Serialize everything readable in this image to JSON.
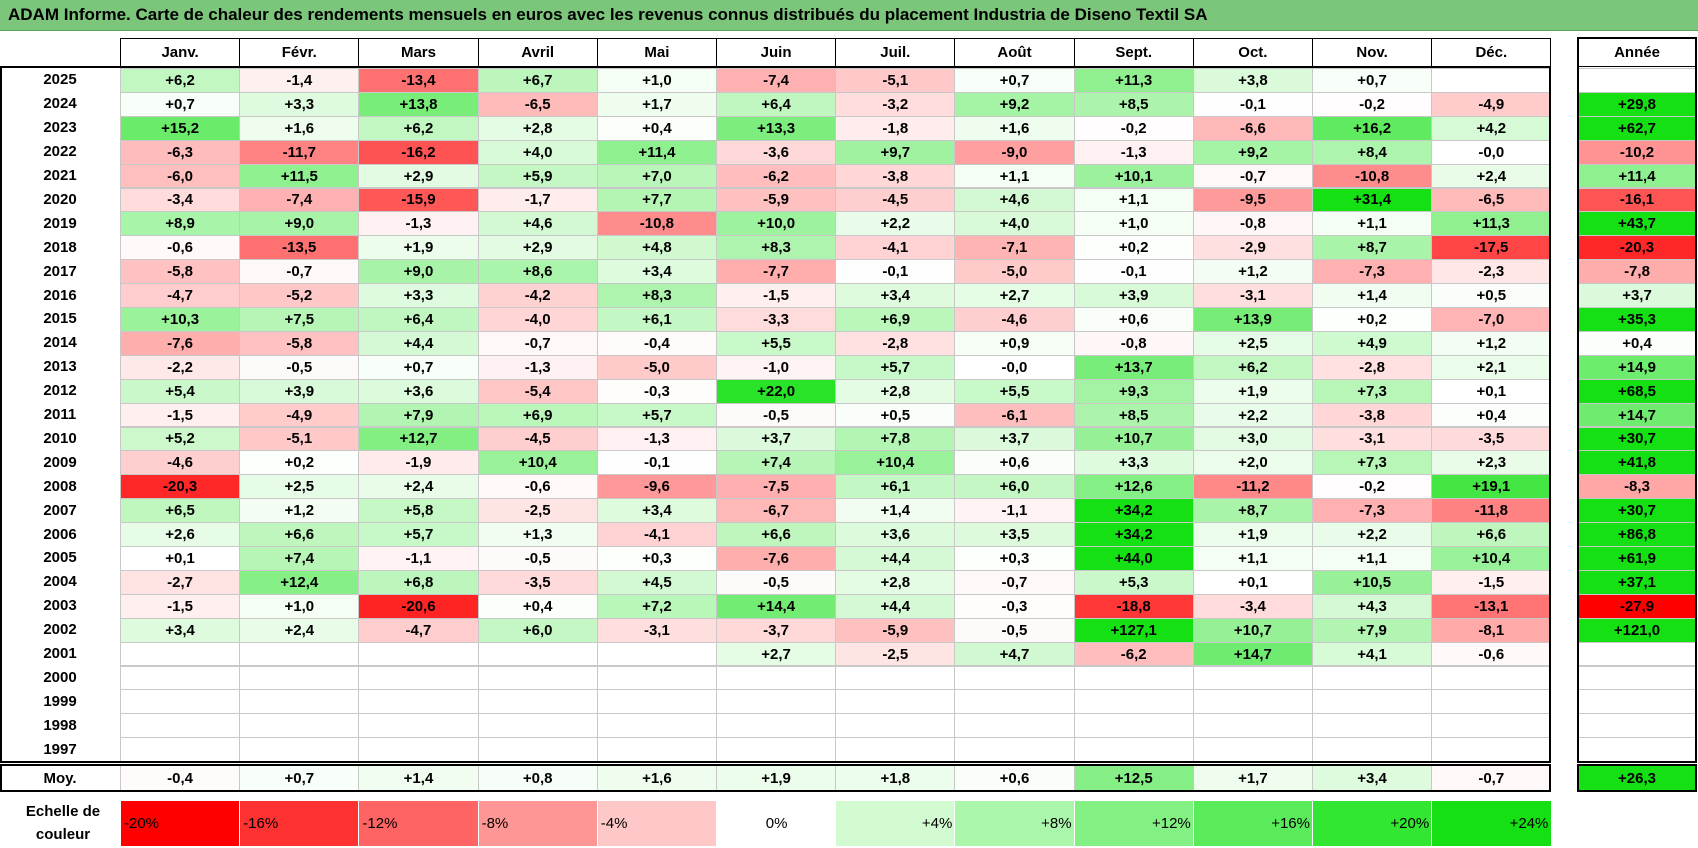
{
  "title": "ADAM Informe. Carte de chaleur des rendements mensuels en euros avec les revenus connus distribués du placement Industria de Diseno Textil SA",
  "chart_data": {
    "type": "heatmap",
    "columns": [
      "Janv.",
      "Févr.",
      "Mars",
      "Avril",
      "Mai",
      "Juin",
      "Juil.",
      "Août",
      "Sept.",
      "Oct.",
      "Nov.",
      "Déc."
    ],
    "year_header": "Année",
    "rows": [
      {
        "year": "2025",
        "months": [
          "+6,2",
          "-1,4",
          "-13,4",
          "+6,7",
          "+1,0",
          "-7,4",
          "-5,1",
          "+0,7",
          "+11,3",
          "+3,8",
          "+0,7",
          ""
        ],
        "annual": ""
      },
      {
        "year": "2024",
        "months": [
          "+0,7",
          "+3,3",
          "+13,8",
          "-6,5",
          "+1,7",
          "+6,4",
          "-3,2",
          "+9,2",
          "+8,5",
          "-0,1",
          "-0,2",
          "-4,9"
        ],
        "annual": "+29,8"
      },
      {
        "year": "2023",
        "months": [
          "+15,2",
          "+1,6",
          "+6,2",
          "+2,8",
          "+0,4",
          "+13,3",
          "-1,8",
          "+1,6",
          "-0,2",
          "-6,6",
          "+16,2",
          "+4,2"
        ],
        "annual": "+62,7"
      },
      {
        "year": "2022",
        "months": [
          "-6,3",
          "-11,7",
          "-16,2",
          "+4,0",
          "+11,4",
          "-3,6",
          "+9,7",
          "-9,0",
          "-1,3",
          "+9,2",
          "+8,4",
          "-0,0"
        ],
        "annual": "-10,2"
      },
      {
        "year": "2021",
        "months": [
          "-6,0",
          "+11,5",
          "+2,9",
          "+5,9",
          "+7,0",
          "-6,2",
          "-3,8",
          "+1,1",
          "+10,1",
          "-0,7",
          "-10,8",
          "+2,4"
        ],
        "annual": "+11,4"
      },
      {
        "year": "2020",
        "months": [
          "-3,4",
          "-7,4",
          "-15,9",
          "-1,7",
          "+7,7",
          "-5,9",
          "-4,5",
          "+4,6",
          "+1,1",
          "-9,5",
          "+31,4",
          "-6,5"
        ],
        "annual": "-16,1"
      },
      {
        "year": "2019",
        "months": [
          "+8,9",
          "+9,0",
          "-1,3",
          "+4,6",
          "-10,8",
          "+10,0",
          "+2,2",
          "+4,0",
          "+1,0",
          "-0,8",
          "+1,1",
          "+11,3"
        ],
        "annual": "+43,7"
      },
      {
        "year": "2018",
        "months": [
          "-0,6",
          "-13,5",
          "+1,9",
          "+2,9",
          "+4,8",
          "+8,3",
          "-4,1",
          "-7,1",
          "+0,2",
          "-2,9",
          "+8,7",
          "-17,5"
        ],
        "annual": "-20,3"
      },
      {
        "year": "2017",
        "months": [
          "-5,8",
          "-0,7",
          "+9,0",
          "+8,6",
          "+3,4",
          "-7,7",
          "-0,1",
          "-5,0",
          "-0,1",
          "+1,2",
          "-7,3",
          "-2,3"
        ],
        "annual": "-7,8"
      },
      {
        "year": "2016",
        "months": [
          "-4,7",
          "-5,2",
          "+3,3",
          "-4,2",
          "+8,3",
          "-1,5",
          "+3,4",
          "+2,7",
          "+3,9",
          "-3,1",
          "+1,4",
          "+0,5"
        ],
        "annual": "+3,7"
      },
      {
        "year": "2015",
        "months": [
          "+10,3",
          "+7,5",
          "+6,4",
          "-4,0",
          "+6,1",
          "-3,3",
          "+6,9",
          "-4,6",
          "+0,6",
          "+13,9",
          "+0,2",
          "-7,0"
        ],
        "annual": "+35,3"
      },
      {
        "year": "2014",
        "months": [
          "-7,6",
          "-5,8",
          "+4,4",
          "-0,7",
          "-0,4",
          "+5,5",
          "-2,8",
          "+0,9",
          "-0,8",
          "+2,5",
          "+4,9",
          "+1,2"
        ],
        "annual": "+0,4"
      },
      {
        "year": "2013",
        "months": [
          "-2,2",
          "-0,5",
          "+0,7",
          "-1,3",
          "-5,0",
          "-1,0",
          "+5,7",
          "-0,0",
          "+13,7",
          "+6,2",
          "-2,8",
          "+2,1"
        ],
        "annual": "+14,9"
      },
      {
        "year": "2012",
        "months": [
          "+5,4",
          "+3,9",
          "+3,6",
          "-5,4",
          "-0,3",
          "+22,0",
          "+2,8",
          "+5,5",
          "+9,3",
          "+1,9",
          "+7,3",
          "+0,1"
        ],
        "annual": "+68,5"
      },
      {
        "year": "2011",
        "months": [
          "-1,5",
          "-4,9",
          "+7,9",
          "+6,9",
          "+5,7",
          "-0,5",
          "+0,5",
          "-6,1",
          "+8,5",
          "+2,2",
          "-3,8",
          "+0,4"
        ],
        "annual": "+14,7"
      },
      {
        "year": "2010",
        "months": [
          "+5,2",
          "-5,1",
          "+12,7",
          "-4,5",
          "-1,3",
          "+3,7",
          "+7,8",
          "+3,7",
          "+10,7",
          "+3,0",
          "-3,1",
          "-3,5"
        ],
        "annual": "+30,7"
      },
      {
        "year": "2009",
        "months": [
          "-4,6",
          "+0,2",
          "-1,9",
          "+10,4",
          "-0,1",
          "+7,4",
          "+10,4",
          "+0,6",
          "+3,3",
          "+2,0",
          "+7,3",
          "+2,3"
        ],
        "annual": "+41,8"
      },
      {
        "year": "2008",
        "months": [
          "-20,3",
          "+2,5",
          "+2,4",
          "-0,6",
          "-9,6",
          "-7,5",
          "+6,1",
          "+6,0",
          "+12,6",
          "-11,2",
          "-0,2",
          "+19,1"
        ],
        "annual": "-8,3"
      },
      {
        "year": "2007",
        "months": [
          "+6,5",
          "+1,2",
          "+5,8",
          "-2,5",
          "+3,4",
          "-6,7",
          "+1,4",
          "-1,1",
          "+34,2",
          "+8,7",
          "-7,3",
          "-11,8"
        ],
        "annual": "+30,7"
      },
      {
        "year": "2006",
        "months": [
          "+2,6",
          "+6,6",
          "+5,7",
          "+1,3",
          "-4,1",
          "+6,6",
          "+3,6",
          "+3,5",
          "+34,2",
          "+1,9",
          "+2,2",
          "+6,6"
        ],
        "annual": "+86,8"
      },
      {
        "year": "2005",
        "months": [
          "+0,1",
          "+7,4",
          "-1,1",
          "-0,5",
          "+0,3",
          "-7,6",
          "+4,4",
          "+0,3",
          "+44,0",
          "+1,1",
          "+1,1",
          "+10,4"
        ],
        "annual": "+61,9"
      },
      {
        "year": "2004",
        "months": [
          "-2,7",
          "+12,4",
          "+6,8",
          "-3,5",
          "+4,5",
          "-0,5",
          "+2,8",
          "-0,7",
          "+5,3",
          "+0,1",
          "+10,5",
          "-1,5"
        ],
        "annual": "+37,1"
      },
      {
        "year": "2003",
        "months": [
          "-1,5",
          "+1,0",
          "-20,6",
          "+0,4",
          "+7,2",
          "+14,4",
          "+4,4",
          "-0,3",
          "-18,8",
          "-3,4",
          "+4,3",
          "-13,1"
        ],
        "annual": "-27,9"
      },
      {
        "year": "2002",
        "months": [
          "+3,4",
          "+2,4",
          "-4,7",
          "+6,0",
          "-3,1",
          "-3,7",
          "-5,9",
          "-0,5",
          "+127,1",
          "+10,7",
          "+7,9",
          "-8,1"
        ],
        "annual": "+121,0"
      },
      {
        "year": "2001",
        "months": [
          "",
          "",
          "",
          "",
          "",
          "+2,7",
          "-2,5",
          "+4,7",
          "-6,2",
          "+14,7",
          "+4,1",
          "-0,6"
        ],
        "annual": ""
      },
      {
        "year": "2000",
        "months": [
          "",
          "",
          "",
          "",
          "",
          "",
          "",
          "",
          "",
          "",
          "",
          ""
        ],
        "annual": ""
      },
      {
        "year": "1999",
        "months": [
          "",
          "",
          "",
          "",
          "",
          "",
          "",
          "",
          "",
          "",
          "",
          ""
        ],
        "annual": ""
      },
      {
        "year": "1998",
        "months": [
          "",
          "",
          "",
          "",
          "",
          "",
          "",
          "",
          "",
          "",
          "",
          ""
        ],
        "annual": ""
      },
      {
        "year": "1997",
        "months": [
          "",
          "",
          "",
          "",
          "",
          "",
          "",
          "",
          "",
          "",
          "",
          ""
        ],
        "annual": ""
      }
    ],
    "average": {
      "label": "Moy.",
      "months": [
        "-0,4",
        "+0,7",
        "+1,4",
        "+0,8",
        "+1,6",
        "+1,9",
        "+1,8",
        "+0,6",
        "+12,5",
        "+1,7",
        "+3,4",
        "-0,7"
      ],
      "annual": "+26,3"
    },
    "scale": {
      "label": "Echelle de couleur",
      "steps": [
        {
          "text": "-20%",
          "value": -20,
          "color": "#ff0000"
        },
        {
          "text": "-16%",
          "value": -16,
          "color": "#ff3232"
        },
        {
          "text": "-12%",
          "value": -12,
          "color": "#ff6464"
        },
        {
          "text": "-8%",
          "value": -8,
          "color": "#ff9696"
        },
        {
          "text": "-4%",
          "value": -4,
          "color": "#ffc8c8"
        },
        {
          "text": "0%",
          "value": 0,
          "color": "#ffffff"
        },
        {
          "text": "+4%",
          "value": 4,
          "color": "#d2fbd2"
        },
        {
          "text": "+8%",
          "value": 8,
          "color": "#aaf6aa"
        },
        {
          "text": "+12%",
          "value": 12,
          "color": "#82f082"
        },
        {
          "text": "+16%",
          "value": 16,
          "color": "#5aeb5a"
        },
        {
          "text": "+20%",
          "value": 20,
          "color": "#32e632"
        },
        {
          "text": "+24%",
          "value": 24,
          "color": "#14e014"
        }
      ]
    }
  }
}
